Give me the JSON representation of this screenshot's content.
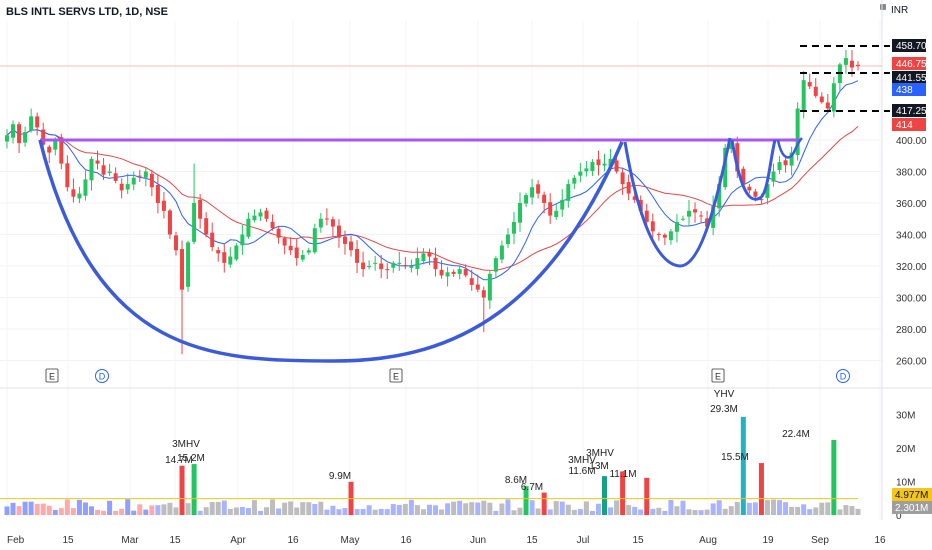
{
  "header": {
    "symbol_title": "BLS INTL SERVS LTD, 1D, NSE",
    "currency_button": "INR"
  },
  "colors": {
    "up": "#22c55e",
    "down": "#ef4444",
    "teal": "#16a085",
    "cup_line": "#3b5bdb",
    "resistance": "#a855f7",
    "ma_fast": "#2962ff",
    "ma_slow": "#e64848",
    "vol_avg": "#f5c518"
  },
  "chart_data": [
    {
      "type": "candlestick",
      "title": "BLS INTL SERVS LTD, 1D, NSE",
      "y_ticks": [
        "260.00",
        "280.00",
        "300.00",
        "320.00",
        "340.00",
        "360.00",
        "380.00",
        "400.00"
      ],
      "ylim": [
        252,
        475
      ],
      "x_ticks": [
        "Feb",
        "15",
        "Mar",
        "15",
        "Apr",
        "16",
        "May",
        "16",
        "Jun",
        "15",
        "Jul",
        "15",
        "Aug",
        "19",
        "Sep",
        "16"
      ],
      "price_labels": [
        {
          "value": "458.70",
          "style": "dark"
        },
        {
          "value": "446.75",
          "style": "red"
        },
        {
          "value": "441.55",
          "style": "dark"
        },
        {
          "value": "438",
          "style": "blue"
        },
        {
          "value": "417.25",
          "style": "dark"
        },
        {
          "value": "414",
          "style": "red"
        }
      ],
      "resistance_level": 400,
      "events": [
        {
          "label": "E",
          "type": "earnings"
        },
        {
          "label": "D",
          "type": "dividend"
        },
        {
          "label": "E",
          "type": "earnings"
        },
        {
          "label": "E",
          "type": "earnings"
        },
        {
          "label": "D",
          "type": "dividend"
        }
      ],
      "close_series": [
        403,
        410,
        398,
        405,
        415,
        408,
        397,
        392,
        400,
        385,
        370,
        364,
        366,
        375,
        388,
        385,
        378,
        380,
        374,
        368,
        372,
        376,
        377,
        380,
        370,
        360,
        355,
        340,
        330,
        305,
        335,
        360,
        350,
        340,
        332,
        328,
        322,
        326,
        333,
        340,
        350,
        352,
        354,
        350,
        344,
        338,
        333,
        330,
        325,
        327,
        330,
        344,
        350,
        350,
        345,
        338,
        334,
        330,
        322,
        318,
        320,
        322,
        318,
        318,
        322,
        322,
        320,
        320,
        325,
        328,
        326,
        318,
        314,
        316,
        315,
        318,
        314,
        308,
        305,
        300,
        315,
        325,
        333,
        340,
        348,
        360,
        365,
        370,
        366,
        360,
        352,
        355,
        362,
        372,
        376,
        380,
        382,
        386,
        384,
        385,
        388,
        380,
        372,
        366,
        362,
        355,
        348,
        342,
        340,
        338,
        342,
        348,
        350,
        355,
        354,
        352,
        345,
        358,
        372,
        395,
        398,
        380,
        372,
        368,
        364,
        362,
        372,
        380,
        386,
        384,
        392,
        420,
        438,
        434,
        428,
        424,
        420,
        436,
        448,
        452,
        446,
        447
      ]
    },
    {
      "type": "bar",
      "title": "Volume",
      "y_ticks": [
        "0",
        "10M",
        "20M",
        "30M"
      ],
      "ylim": [
        0,
        32
      ],
      "unit": "M",
      "reference_labels": [
        {
          "value": "4.977M",
          "style": "yellow"
        },
        {
          "value": "2.301M",
          "style": "gray"
        }
      ],
      "annotations": [
        "3MHV",
        "14.7M",
        "15.2M",
        "9.9M",
        "8.6M",
        "6.7M",
        "3MHV",
        "11.6M",
        "3MHV",
        "13M",
        "11.1M",
        "YHV",
        "29.3M",
        "15.5M",
        "22.4M"
      ],
      "annotated_bars": [
        {
          "index": 29,
          "value": 14.7
        },
        {
          "index": 31,
          "value": 15.2
        },
        {
          "index": 57,
          "value": 9.9
        },
        {
          "index": 86,
          "value": 8.6
        },
        {
          "index": 89,
          "value": 6.7
        },
        {
          "index": 99,
          "value": 11.6
        },
        {
          "index": 102,
          "value": 13
        },
        {
          "index": 106,
          "value": 11.1
        },
        {
          "index": 122,
          "value": 29.3
        },
        {
          "index": 125,
          "value": 15.5
        },
        {
          "index": 137,
          "value": 22.4
        }
      ]
    }
  ]
}
